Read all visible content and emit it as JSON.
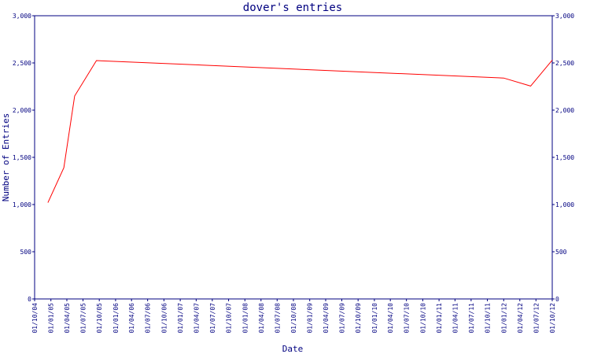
{
  "chart_data": {
    "type": "line",
    "title": "dover's entries",
    "xlabel": "Date",
    "ylabel": "Number of Entries",
    "ylim": [
      0,
      3000
    ],
    "y_ticks": [
      "0",
      "500",
      "1,000",
      "1,500",
      "2,000",
      "2,500",
      "3,000"
    ],
    "y_tick_values": [
      0,
      500,
      1000,
      1500,
      2000,
      2500,
      3000
    ],
    "x_ticks": [
      "01/10/04",
      "01/01/05",
      "01/04/05",
      "01/07/05",
      "01/10/05",
      "01/01/06",
      "01/04/06",
      "01/07/06",
      "01/10/06",
      "01/01/07",
      "01/04/07",
      "01/07/07",
      "01/10/07",
      "01/01/08",
      "01/04/08",
      "01/07/08",
      "01/10/08",
      "01/01/09",
      "01/04/09",
      "01/07/09",
      "01/10/09",
      "01/01/10",
      "01/04/10",
      "01/07/10",
      "01/10/10",
      "01/01/11",
      "01/04/11",
      "01/07/11",
      "01/10/11",
      "01/01/12",
      "01/04/12",
      "01/07/12",
      "01/10/12"
    ],
    "line_color": "#ff0000",
    "axis_color": "#000080",
    "grid": false,
    "legend": "none",
    "series": [
      {
        "x": [
          "2004-12-15",
          "2005-03-15",
          "2005-05-15",
          "2005-09-15",
          "2012-01-01",
          "2012-06-01",
          "2012-10-01"
        ],
        "y": [
          1020,
          1390,
          2150,
          2525,
          2340,
          2255,
          2530
        ]
      }
    ]
  }
}
